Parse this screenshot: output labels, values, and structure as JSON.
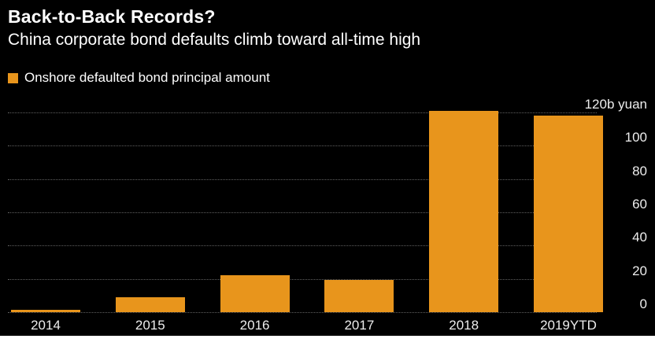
{
  "title": "Back-to-Back Records?",
  "subtitle": "China corporate bond defaults climb toward all-time high",
  "legend": {
    "label": "Onshore defaulted bond principal amount",
    "color": "#E8951C"
  },
  "colors": {
    "background": "#000000",
    "text": "#FFFFFF",
    "gridline": "#606060",
    "bar": "#E8951C"
  },
  "chart_data": {
    "type": "bar",
    "title": "Back-to-Back Records?",
    "subtitle": "China corporate bond defaults climb toward all-time high",
    "categories": [
      "2014",
      "2015",
      "2016",
      "2017",
      "2018",
      "2019YTD"
    ],
    "series": [
      {
        "name": "Onshore defaulted bond principal amount",
        "values": [
          1.5,
          9,
          22,
          19.5,
          121,
          118
        ]
      }
    ],
    "values": [
      1.5,
      9,
      22,
      19.5,
      121,
      118
    ],
    "xlabel": "",
    "ylabel": "120b yuan",
    "unit": "b yuan",
    "ylim": [
      0,
      120
    ],
    "yticks": [
      {
        "value": 120,
        "label": "120b yuan"
      },
      {
        "value": 100,
        "label": "100"
      },
      {
        "value": 80,
        "label": "80"
      },
      {
        "value": 60,
        "label": "60"
      },
      {
        "value": 40,
        "label": "40"
      },
      {
        "value": 20,
        "label": "20"
      },
      {
        "value": 0,
        "label": "0"
      }
    ],
    "grid": "horizontal-dotted",
    "legend_position": "top-left",
    "bar_color": "#E8951C",
    "background": "#000000"
  }
}
